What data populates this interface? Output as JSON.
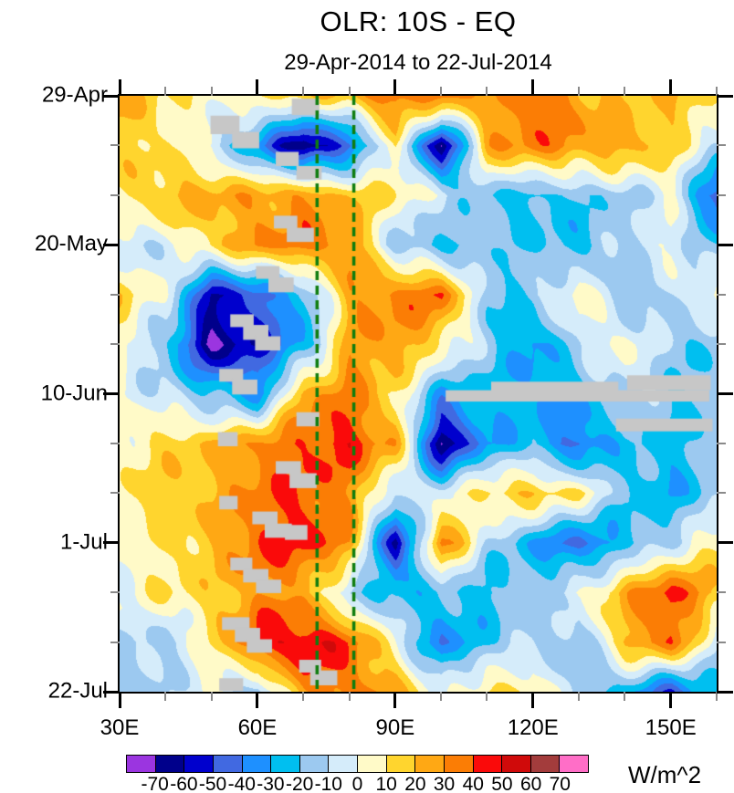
{
  "title": "OLR: 10S - EQ",
  "subtitle": "29-Apr-2014 to 22-Jul-2014",
  "unit_label": "W/m^2",
  "colorbar": {
    "tick_labels": [
      "-70",
      "-60",
      "-50",
      "-40",
      "-30",
      "-20",
      "-10",
      "0",
      "10",
      "20",
      "30",
      "40",
      "50",
      "60",
      "70"
    ]
  },
  "chart_data": {
    "type": "heatmap",
    "title": "OLR: 10S - EQ",
    "subtitle": "29-Apr-2014 to 22-Jul-2014",
    "units": "W/m^2",
    "x_axis": {
      "min": 30,
      "max": 160,
      "major_ticks": [
        30,
        60,
        90,
        120,
        150
      ],
      "major_tick_labels": [
        "30E",
        "60E",
        "90E",
        "120E",
        "150E"
      ],
      "minor_ticks": [
        40,
        50,
        70,
        80,
        100,
        110,
        130,
        140,
        160
      ]
    },
    "y_axis": {
      "orientation": "time-downward",
      "total_days": 84,
      "major_tick_days": [
        0,
        21,
        42,
        63,
        84
      ],
      "major_tick_labels": [
        "29-Apr",
        "20-May",
        "10-Jun",
        "1-Jul",
        "22-Jul"
      ],
      "minor_tick_days": [
        7,
        14,
        28,
        35,
        49,
        56,
        70,
        77
      ]
    },
    "levels": [
      -70,
      -60,
      -50,
      -40,
      -30,
      -20,
      -10,
      0,
      10,
      20,
      30,
      40,
      50,
      60,
      70
    ],
    "palette": [
      "#9B35E0",
      "#00008B",
      "#0000CD",
      "#4169E1",
      "#1E90FF",
      "#00BFF0",
      "#9CC9F0",
      "#D5ECFA",
      "#FFFAC8",
      "#FFD52E",
      "#FFA814",
      "#FB7D05",
      "#FA0A0A",
      "#D00A0A",
      "#A33C3C",
      "#FF6EC7"
    ],
    "grid_note_lons": [
      30,
      40,
      50,
      60,
      70,
      80,
      90,
      100,
      110,
      120,
      130,
      140,
      150,
      160
    ],
    "grid_note_days": [
      0,
      7,
      14,
      21,
      28,
      35,
      42,
      49,
      56,
      63,
      70,
      77,
      84
    ],
    "row_dates": [
      "29-Apr",
      "6-May",
      "13-May",
      "20-May",
      "27-May",
      "3-Jun",
      "10-Jun",
      "17-Jun",
      "24-Jun",
      "1-Jul",
      "8-Jul",
      "15-Jul",
      "22-Jul"
    ],
    "values": [
      [
        25,
        10,
        5,
        10,
        15,
        20,
        40,
        35,
        25,
        40,
        25,
        15,
        20,
        15
      ],
      [
        15,
        10,
        -5,
        -35,
        -72,
        -45,
        10,
        -72,
        25,
        35,
        30,
        25,
        15,
        -10
      ],
      [
        10,
        20,
        25,
        25,
        30,
        20,
        10,
        -5,
        -20,
        -25,
        -20,
        -15,
        0,
        -50
      ],
      [
        -10,
        -5,
        15,
        30,
        35,
        30,
        -15,
        -25,
        -15,
        -20,
        -25,
        -10,
        0,
        -20
      ],
      [
        15,
        0,
        -60,
        -45,
        -25,
        25,
        35,
        40,
        -20,
        -15,
        10,
        -20,
        -10,
        5
      ],
      [
        5,
        -20,
        -72,
        -55,
        -30,
        25,
        30,
        10,
        -15,
        -35,
        -10,
        5,
        -15,
        -20
      ],
      [
        0,
        -10,
        -20,
        -35,
        25,
        35,
        10,
        null,
        null,
        null,
        null,
        null,
        null,
        null
      ],
      [
        5,
        15,
        20,
        30,
        40,
        45,
        25,
        -72,
        -30,
        -25,
        -45,
        -20,
        -25,
        -15
      ],
      [
        10,
        15,
        20,
        35,
        40,
        30,
        -10,
        -5,
        15,
        20,
        10,
        -20,
        -30,
        -15
      ],
      [
        5,
        10,
        20,
        40,
        45,
        30,
        -65,
        35,
        -10,
        -30,
        -45,
        -25,
        -10,
        10
      ],
      [
        0,
        10,
        15,
        30,
        25,
        -15,
        -25,
        -20,
        -25,
        -15,
        0,
        25,
        45,
        20
      ],
      [
        -10,
        -15,
        10,
        45,
        52,
        40,
        0,
        -40,
        -20,
        -10,
        -20,
        20,
        40,
        -10
      ],
      [
        -15,
        -10,
        0,
        -20,
        30,
        35,
        25,
        -5,
        15,
        10,
        -15,
        -25,
        -50,
        -20
      ]
    ],
    "missing_color": "#C7C7C7",
    "missing_blocks": [
      [
        67.5,
        73.5,
        0.4,
        2.7
      ],
      [
        49.8,
        56.1,
        2.8,
        5.4
      ],
      [
        54.5,
        60.4,
        5.1,
        7.4
      ],
      [
        64.0,
        69.0,
        7.9,
        9.9
      ],
      [
        68.5,
        74.0,
        9.9,
        11.8
      ],
      [
        63.6,
        68.7,
        16.9,
        18.7
      ],
      [
        66.4,
        72.3,
        18.6,
        20.6
      ],
      [
        59.7,
        64.8,
        24.0,
        25.8
      ],
      [
        62.4,
        67.9,
        25.6,
        27.7
      ],
      [
        54.1,
        59.2,
        30.8,
        32.6
      ],
      [
        56.9,
        62.4,
        32.3,
        34.4
      ],
      [
        59.5,
        65.0,
        33.9,
        35.9
      ],
      [
        51.7,
        56.9,
        38.5,
        40.3
      ],
      [
        54.5,
        60.0,
        40.0,
        42.1
      ],
      [
        68.5,
        73.5,
        44.6,
        46.6
      ],
      [
        51.4,
        55.7,
        47.4,
        49.4
      ],
      [
        64.0,
        69.5,
        51.5,
        53.3
      ],
      [
        67.0,
        72.9,
        53.2,
        55.3
      ],
      [
        51.7,
        55.7,
        56.4,
        58.3
      ],
      [
        58.9,
        64.4,
        58.6,
        60.4
      ],
      [
        61.6,
        67.5,
        60.3,
        62.3
      ],
      [
        66.0,
        70.9,
        60.5,
        62.6
      ],
      [
        54.1,
        58.9,
        65.1,
        66.9
      ],
      [
        56.9,
        62.4,
        66.7,
        68.6
      ],
      [
        59.7,
        65.2,
        68.2,
        70.1
      ],
      [
        52.3,
        58.3,
        73.5,
        75.3
      ],
      [
        55.1,
        60.6,
        75.0,
        77.0
      ],
      [
        57.7,
        63.2,
        76.6,
        78.5
      ],
      [
        69.1,
        73.9,
        79.5,
        81.3
      ],
      [
        71.5,
        77.4,
        81.0,
        83.1
      ],
      [
        51.7,
        56.9,
        82.1,
        83.9
      ],
      [
        110.9,
        138.6,
        40.3,
        41.6
      ],
      [
        101.0,
        158.4,
        41.5,
        43.1
      ],
      [
        140.5,
        158.7,
        39.4,
        41.5
      ],
      [
        138.1,
        159.1,
        45.5,
        47.3
      ]
    ],
    "reference_lines": {
      "color": "#0F7D0F",
      "style": "dashed",
      "lons": [
        73.0,
        81.0
      ]
    }
  }
}
